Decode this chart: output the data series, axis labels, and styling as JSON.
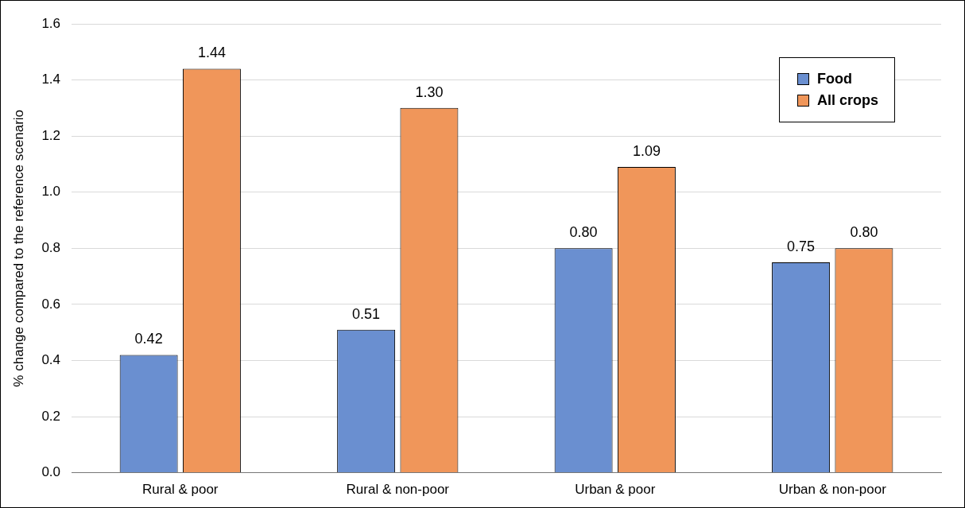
{
  "chart_data": {
    "type": "bar",
    "ylabel": "% change compared to the reference scenario",
    "categories": [
      "Rural & poor",
      "Rural & non-poor",
      "Urban & poor",
      "Urban & non-poor"
    ],
    "series": [
      {
        "name": "Food",
        "color": "#6a8fd0",
        "values": [
          0.42,
          0.51,
          0.8,
          0.75
        ],
        "value_labels": [
          "0.42",
          "0.51",
          "0.80",
          "0.75"
        ]
      },
      {
        "name": "All crops",
        "color": "#f0965a",
        "values": [
          1.44,
          1.3,
          1.09,
          0.8
        ],
        "value_labels": [
          "1.44",
          "1.30",
          "1.09",
          "0.80"
        ]
      }
    ],
    "ylim": [
      0,
      1.6
    ],
    "yticks": [
      {
        "value": 0,
        "label": "0.0"
      },
      {
        "value": 0.2,
        "label": "0.2"
      },
      {
        "value": 0.4,
        "label": "0.4"
      },
      {
        "value": 0.6,
        "label": "0.6"
      },
      {
        "value": 0.8,
        "label": "0.8"
      },
      {
        "value": 1.0,
        "label": "1.0"
      },
      {
        "value": 1.2,
        "label": "1.2"
      },
      {
        "value": 1.4,
        "label": "1.4"
      },
      {
        "value": 1.6,
        "label": "1.6"
      }
    ],
    "grid": "y",
    "legend": "top right"
  }
}
